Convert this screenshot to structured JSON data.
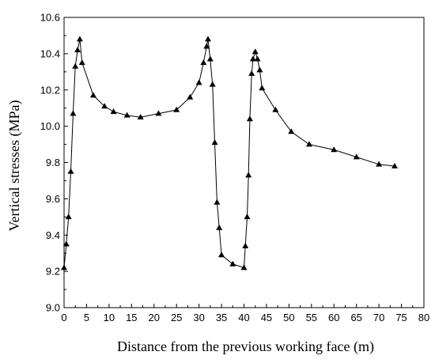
{
  "chart_data": {
    "type": "line",
    "title": "",
    "xlabel": "Distance from the previous working face (m)",
    "ylabel": "Vertical stresses (MPa)",
    "xlim": [
      0,
      80
    ],
    "ylim": [
      9.0,
      10.6
    ],
    "x_ticks": [
      0,
      5,
      10,
      15,
      20,
      25,
      30,
      35,
      40,
      45,
      50,
      55,
      60,
      65,
      70,
      75,
      80
    ],
    "y_ticks": [
      9.0,
      9.2,
      9.4,
      9.6,
      9.8,
      10.0,
      10.2,
      10.4,
      10.6
    ],
    "grid": false,
    "legend": "none",
    "marker": "triangle",
    "color": "#000000",
    "series": [
      {
        "x": [
          0,
          0.5,
          1.0,
          1.5,
          2.0,
          2.5,
          3.0,
          3.5,
          4.0,
          6.5,
          9.0,
          11.0,
          14.0,
          17.0,
          21.0,
          25.0,
          28.0,
          30.0,
          31.0,
          31.7,
          32.0,
          32.5,
          33.0,
          33.5,
          34.0,
          34.5,
          35.0,
          37.5,
          40.0,
          40.3,
          40.7,
          41.0,
          41.3,
          41.7,
          42.0,
          42.5,
          43.0,
          43.5,
          44.0,
          47.0,
          50.5,
          54.5,
          60.0,
          65.0,
          70.0,
          73.5
        ],
        "y": [
          9.22,
          9.35,
          9.5,
          9.75,
          10.07,
          10.33,
          10.42,
          10.48,
          10.35,
          10.17,
          10.11,
          10.08,
          10.06,
          10.05,
          10.07,
          10.09,
          10.16,
          10.24,
          10.35,
          10.44,
          10.48,
          10.37,
          10.23,
          9.91,
          9.58,
          9.44,
          9.29,
          9.24,
          9.22,
          9.34,
          9.5,
          9.73,
          10.04,
          10.29,
          10.37,
          10.41,
          10.37,
          10.31,
          10.21,
          10.09,
          9.97,
          9.9,
          9.87,
          9.83,
          9.79,
          9.78
        ]
      }
    ]
  }
}
